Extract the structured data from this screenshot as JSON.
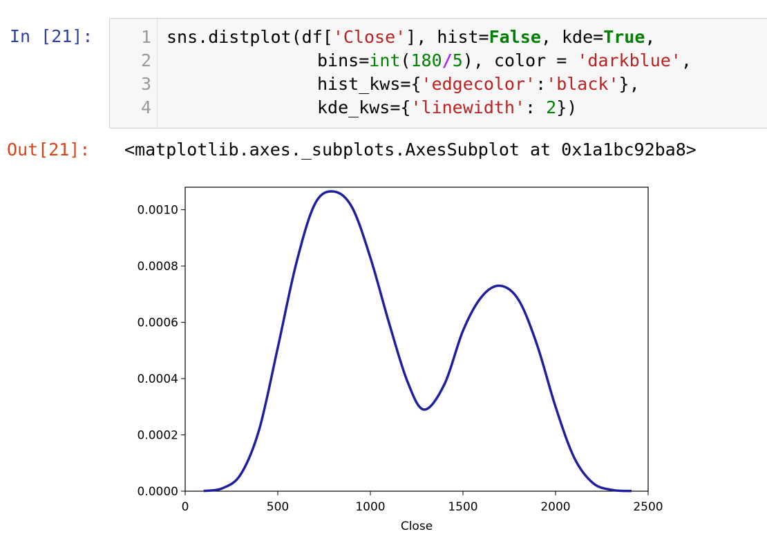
{
  "input_prompt": "In [21]:",
  "output_prompt": "Out[21]:",
  "code": {
    "line_numbers": [
      "1",
      "2",
      "3",
      "4"
    ],
    "line1": {
      "a": "sns.distplot(df[",
      "b": "'Close'",
      "c": "], hist=",
      "d": "False",
      "e": ", kde=",
      "f": "True",
      "g": ","
    },
    "line2": {
      "a": "bins=",
      "b": "int",
      "c": "(",
      "d": "180",
      "e": "/",
      "f": "5",
      "g": "), color = ",
      "h": "'darkblue'",
      "i": ","
    },
    "line3": {
      "a": "hist_kws={",
      "b": "'edgecolor'",
      "c": ":",
      "d": "'black'",
      "e": "},"
    },
    "line4": {
      "a": "kde_kws={",
      "b": "'linewidth'",
      "c": ": ",
      "d": "2",
      "e": "})"
    }
  },
  "output_text": "<matplotlib.axes._subplots.AxesSubplot at 0x1a1bc92ba8>",
  "chart_data": {
    "type": "line",
    "xlabel": "Close",
    "ylabel": "",
    "xlim": [
      0,
      2500
    ],
    "ylim": [
      0,
      0.00108
    ],
    "x_ticks": [
      "0",
      "500",
      "1000",
      "1500",
      "2000",
      "2500"
    ],
    "y_ticks": [
      "0.0000",
      "0.0002",
      "0.0004",
      "0.0006",
      "0.0008",
      "0.0010"
    ],
    "line_color": "#1f1f9e",
    "series": [
      {
        "x": [
          100,
          200,
          300,
          400,
          500,
          600,
          700,
          800,
          900,
          1000,
          1100,
          1200,
          1290,
          1400,
          1500,
          1600,
          1700,
          1800,
          1900,
          2000,
          2100,
          2200,
          2300,
          2410
        ],
        "y": [
          1e-06,
          1e-05,
          6e-05,
          0.00022,
          0.00051,
          0.00081,
          0.00102,
          0.001065,
          0.00101,
          0.00083,
          0.0006,
          0.00039,
          0.00029,
          0.00038,
          0.00057,
          0.00069,
          0.00073,
          0.00068,
          0.00052,
          0.0003,
          0.00012,
          3e-05,
          5e-06,
          5e-07
        ]
      }
    ]
  }
}
